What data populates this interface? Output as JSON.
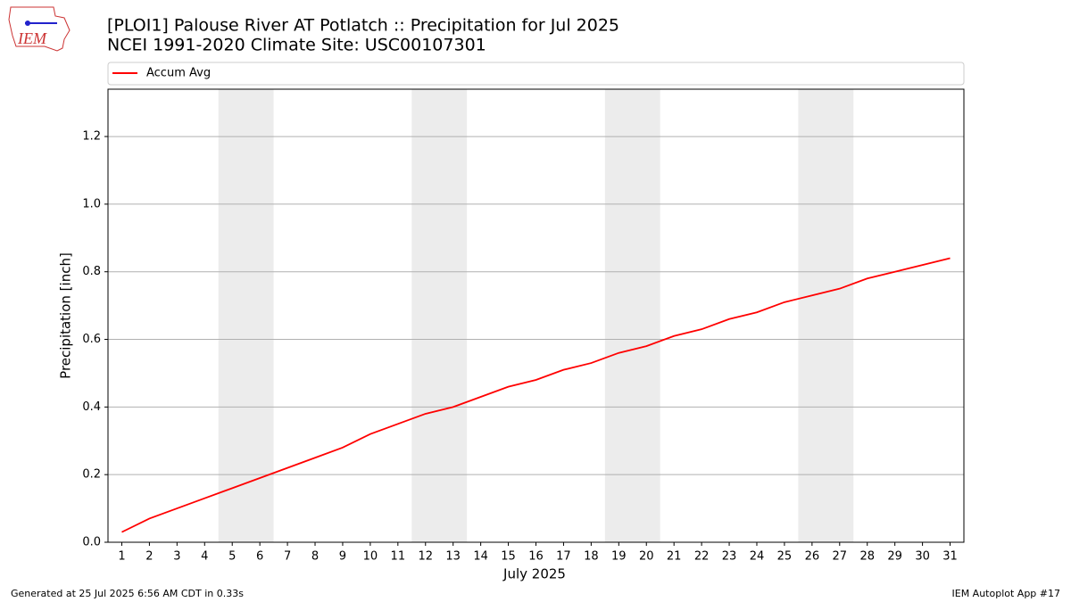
{
  "logo": "IEM",
  "footer": {
    "left": "Generated at 25 Jul 2025 6:56 AM CDT in 0.33s",
    "right": "IEM Autoplot App #17"
  },
  "chart_data": {
    "type": "line",
    "title": "[PLOI1] Palouse River  AT Potlatch :: Precipitation for Jul 2025",
    "subtitle": "NCEI 1991-2020 Climate Site: USC00107301",
    "x_label": "July 2025",
    "y_label": "Precipitation [inch]",
    "x": [
      1,
      2,
      3,
      4,
      5,
      6,
      7,
      8,
      9,
      10,
      11,
      12,
      13,
      14,
      15,
      16,
      17,
      18,
      19,
      20,
      21,
      22,
      23,
      24,
      25,
      26,
      27,
      28,
      29,
      30,
      31
    ],
    "series": [
      {
        "name": "Accum Avg",
        "color": "#ff0000",
        "values": [
          0.03,
          0.07,
          0.1,
          0.13,
          0.16,
          0.19,
          0.22,
          0.25,
          0.28,
          0.32,
          0.35,
          0.38,
          0.4,
          0.43,
          0.46,
          0.48,
          0.51,
          0.53,
          0.56,
          0.58,
          0.61,
          0.63,
          0.66,
          0.68,
          0.71,
          0.73,
          0.75,
          0.78,
          0.8,
          0.82,
          0.84
        ]
      }
    ],
    "xlim": [
      0.5,
      31.5
    ],
    "xticks": [
      1,
      2,
      3,
      4,
      5,
      6,
      7,
      8,
      9,
      10,
      11,
      12,
      13,
      14,
      15,
      16,
      17,
      18,
      19,
      20,
      21,
      22,
      23,
      24,
      25,
      26,
      27,
      28,
      29,
      30,
      31
    ],
    "ylim": [
      0,
      1.34
    ],
    "yticks": [
      {
        "value": 0,
        "label": "0.0"
      },
      0.2,
      0.4,
      0.6,
      0.8,
      {
        "value": 1,
        "label": "1.0"
      },
      1.2
    ],
    "grid": "y",
    "weekend_bands": [
      [
        4.5,
        6.5
      ],
      [
        11.5,
        13.5
      ],
      [
        18.5,
        20.5
      ],
      [
        25.5,
        27.5
      ]
    ],
    "band_color": "#ececec",
    "legend": "top"
  }
}
